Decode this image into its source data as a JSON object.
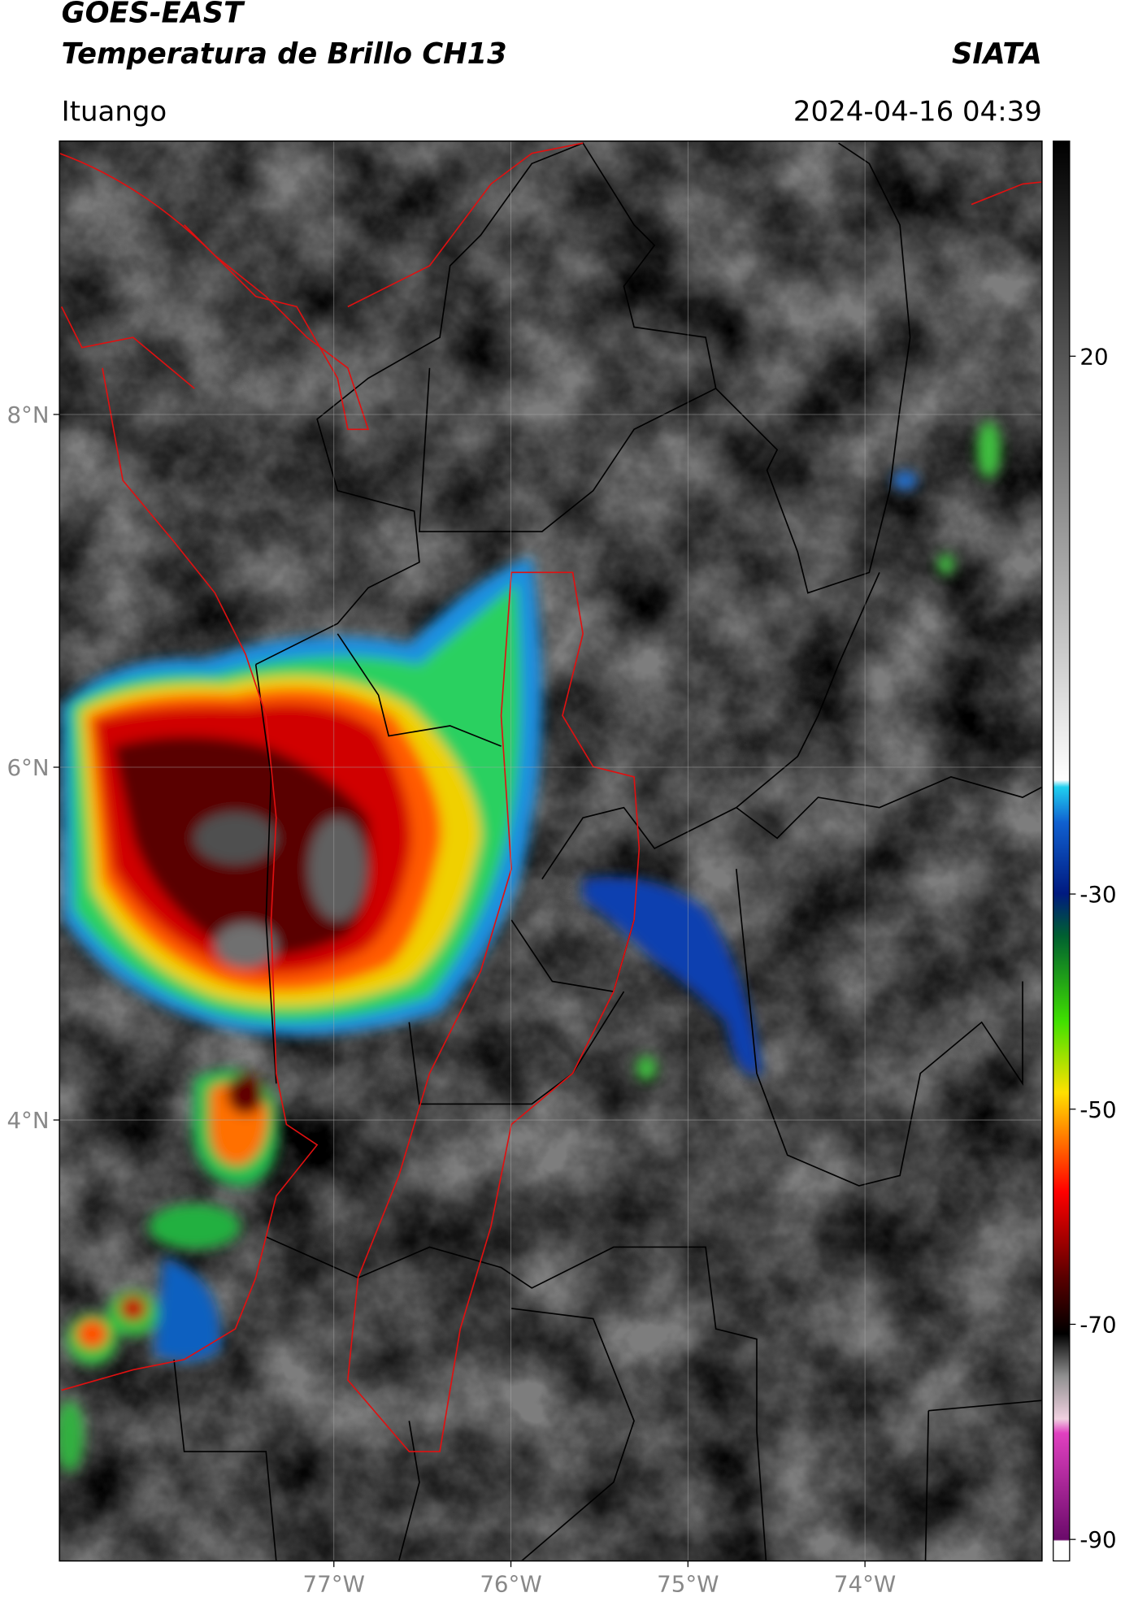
{
  "header": {
    "title": "GOES-EAST",
    "subtitle": "Temperatura de Brillo CH13",
    "brand": "SIATA",
    "location": "Ituango",
    "timestamp": "2024-04-16 04:39"
  },
  "map": {
    "xlim": [
      -78.55,
      -73.0
    ],
    "ylim": [
      1.5,
      9.55
    ],
    "xticks": [
      {
        "value": -77,
        "label": "77°W"
      },
      {
        "value": -76,
        "label": "76°W"
      },
      {
        "value": -75,
        "label": "75°W"
      },
      {
        "value": -74,
        "label": "74°W"
      }
    ],
    "yticks": [
      {
        "value": 8,
        "label": "8°N"
      },
      {
        "value": 6,
        "label": "6°N"
      },
      {
        "value": 4,
        "label": "4°N"
      }
    ],
    "grid": true
  },
  "colorbar": {
    "lim": [
      -92,
      40
    ],
    "ticks": [
      20,
      -30,
      -50,
      -70,
      -90
    ]
  }
}
